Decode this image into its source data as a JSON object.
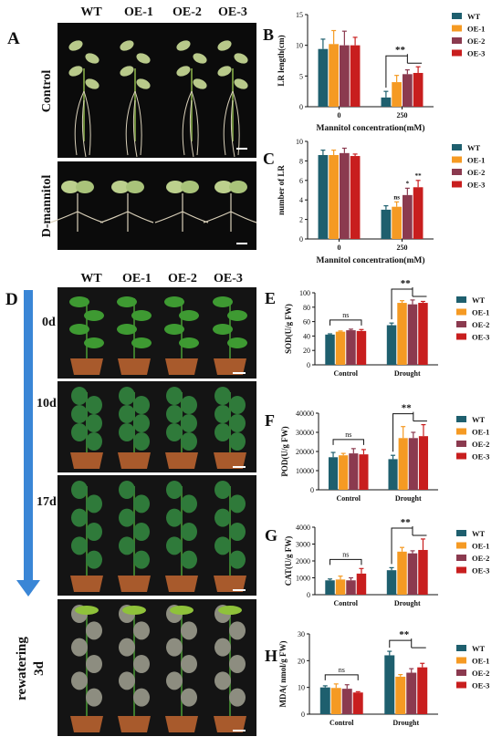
{
  "colors": {
    "WT": "#1e5f6e",
    "OE-1": "#f59a23",
    "OE-2": "#8b3a4f",
    "OE-3": "#c81e1e",
    "photo_dark": "#0b0b0b",
    "arrow": "#3a86d6"
  },
  "panels": {
    "A": {
      "label": "A",
      "genotypes": [
        "WT",
        "OE-1",
        "OE-2",
        "OE-3"
      ],
      "rows": [
        "Control",
        "D-mannitol"
      ]
    },
    "D": {
      "label": "D",
      "genotypes": [
        "WT",
        "OE-1",
        "OE-2",
        "OE-3"
      ],
      "timepoints": [
        "0d",
        "10d",
        "17d"
      ],
      "rewatering": [
        "rewatering",
        "3d"
      ]
    }
  },
  "chart_data": [
    {
      "panel": "B",
      "type": "bar",
      "ylabel": "LR length(cm)",
      "xlabel": "Mannitol concentration(mM)",
      "categories": [
        "0",
        "250"
      ],
      "ylim": [
        0,
        15
      ],
      "yticks": [
        0,
        5,
        10,
        15
      ],
      "series": [
        {
          "name": "WT",
          "values": [
            9.4,
            1.5
          ],
          "err": [
            1.6,
            1.0
          ]
        },
        {
          "name": "OE-1",
          "values": [
            10.2,
            4.0
          ],
          "err": [
            2.2,
            1.1
          ]
        },
        {
          "name": "OE-2",
          "values": [
            10.0,
            5.3
          ],
          "err": [
            2.3,
            0.7
          ]
        },
        {
          "name": "OE-3",
          "values": [
            10.0,
            5.5
          ],
          "err": [
            1.3,
            1.0
          ]
        }
      ],
      "annotations": [
        {
          "text": "**",
          "category": 1,
          "from": 0,
          "to": [
            1,
            2,
            3
          ]
        }
      ]
    },
    {
      "panel": "C",
      "type": "bar",
      "ylabel": "number of LR",
      "xlabel": "Mannitol concentration(mM)",
      "categories": [
        "0",
        "250"
      ],
      "ylim": [
        0,
        10
      ],
      "yticks": [
        0,
        2,
        4,
        6,
        8,
        10
      ],
      "series": [
        {
          "name": "WT",
          "values": [
            8.6,
            3.0
          ],
          "err": [
            0.5,
            0.4
          ]
        },
        {
          "name": "OE-1",
          "values": [
            8.6,
            3.3
          ],
          "err": [
            0.5,
            0.5
          ]
        },
        {
          "name": "OE-2",
          "values": [
            8.8,
            4.5
          ],
          "err": [
            0.5,
            0.7
          ]
        },
        {
          "name": "OE-3",
          "values": [
            8.5,
            5.3
          ],
          "err": [
            0.2,
            0.7
          ]
        }
      ],
      "bar_labels": [
        {
          "category": 1,
          "series": 1,
          "text": "ns"
        },
        {
          "category": 1,
          "series": 2,
          "text": "*"
        },
        {
          "category": 1,
          "series": 3,
          "text": "**"
        }
      ]
    },
    {
      "panel": "E",
      "type": "bar",
      "ylabel": "SOD(U/g FW)",
      "xlabel": "",
      "categories": [
        "Control",
        "Drought"
      ],
      "ylim": [
        0,
        100
      ],
      "yticks": [
        0,
        20,
        40,
        60,
        80,
        100
      ],
      "series": [
        {
          "name": "WT",
          "values": [
            42,
            55
          ],
          "err": [
            1.0,
            3.0
          ]
        },
        {
          "name": "OE-1",
          "values": [
            46,
            86
          ],
          "err": [
            1.0,
            3.0
          ]
        },
        {
          "name": "OE-2",
          "values": [
            48,
            84
          ],
          "err": [
            1.5,
            6.0
          ]
        },
        {
          "name": "OE-3",
          "values": [
            47,
            86
          ],
          "err": [
            2.0,
            2.0
          ]
        }
      ],
      "annotations": [
        {
          "text": "ns",
          "category": 0
        },
        {
          "text": "**",
          "category": 1
        }
      ]
    },
    {
      "panel": "F",
      "type": "bar",
      "ylabel": "POD(U/g FW)",
      "xlabel": "",
      "categories": [
        "Control",
        "Drought"
      ],
      "ylim": [
        0,
        40000
      ],
      "yticks": [
        0,
        10000,
        20000,
        30000,
        40000
      ],
      "series": [
        {
          "name": "WT",
          "values": [
            17000,
            16000
          ],
          "err": [
            2500,
            2000
          ]
        },
        {
          "name": "OE-1",
          "values": [
            18000,
            27000
          ],
          "err": [
            1000,
            6000
          ]
        },
        {
          "name": "OE-2",
          "values": [
            19000,
            27000
          ],
          "err": [
            2500,
            3000
          ]
        },
        {
          "name": "OE-3",
          "values": [
            18500,
            28000
          ],
          "err": [
            2500,
            6000
          ]
        }
      ],
      "annotations": [
        {
          "text": "ns",
          "category": 0
        },
        {
          "text": "**",
          "category": 1
        }
      ]
    },
    {
      "panel": "G",
      "type": "bar",
      "ylabel": "CAT(U/g FW)",
      "xlabel": "",
      "categories": [
        "Control",
        "Drought"
      ],
      "ylim": [
        0,
        4000
      ],
      "yticks": [
        0,
        1000,
        2000,
        3000,
        4000
      ],
      "series": [
        {
          "name": "WT",
          "values": [
            850,
            1450
          ],
          "err": [
            80,
            150
          ]
        },
        {
          "name": "OE-1",
          "values": [
            900,
            2550
          ],
          "err": [
            200,
            250
          ]
        },
        {
          "name": "OE-2",
          "values": [
            850,
            2450
          ],
          "err": [
            150,
            150
          ]
        },
        {
          "name": "OE-3",
          "values": [
            1250,
            2650
          ],
          "err": [
            300,
            650
          ]
        }
      ],
      "annotations": [
        {
          "text": "ns",
          "category": 0
        },
        {
          "text": "**",
          "category": 1
        }
      ]
    },
    {
      "panel": "H",
      "type": "bar",
      "ylabel": "MDA( nmol/g FW)",
      "xlabel": "",
      "categories": [
        "Control",
        "Drought"
      ],
      "ylim": [
        0,
        30
      ],
      "yticks": [
        0,
        10,
        20,
        30
      ],
      "series": [
        {
          "name": "WT",
          "values": [
            10,
            22
          ],
          "err": [
            0.6,
            1.5
          ]
        },
        {
          "name": "OE-1",
          "values": [
            9.8,
            14
          ],
          "err": [
            1.5,
            0.8
          ]
        },
        {
          "name": "OE-2",
          "values": [
            9.5,
            15.5
          ],
          "err": [
            1.5,
            1.5
          ]
        },
        {
          "name": "OE-3",
          "values": [
            8.1,
            17.5
          ],
          "err": [
            0.3,
            1.5
          ]
        }
      ],
      "annotations": [
        {
          "text": "ns",
          "category": 0
        },
        {
          "text": "**",
          "category": 1
        }
      ]
    }
  ]
}
